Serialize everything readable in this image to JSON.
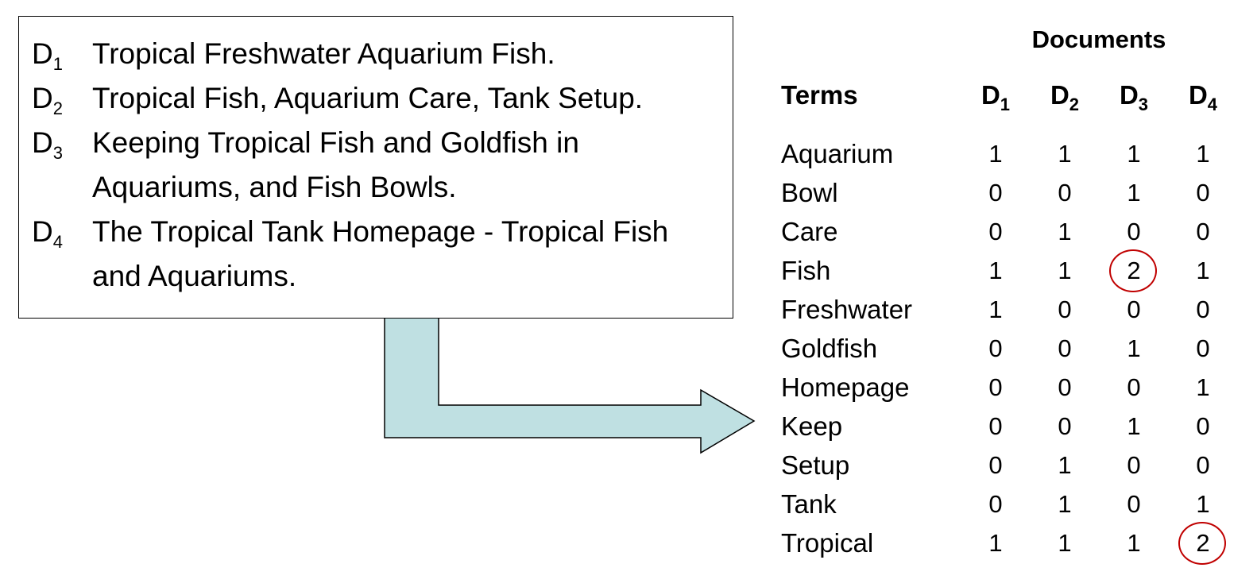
{
  "documents": [
    {
      "id": "D",
      "sub": "1",
      "lines": [
        "Tropical Freshwater Aquarium Fish."
      ]
    },
    {
      "id": "D",
      "sub": "2",
      "lines": [
        "Tropical Fish, Aquarium Care, Tank Setup."
      ]
    },
    {
      "id": "D",
      "sub": "3",
      "lines": [
        "Keeping Tropical Fish and Goldfish in",
        "Aquariums, and Fish Bowls."
      ]
    },
    {
      "id": "D",
      "sub": "4",
      "lines": [
        "The Tropical Tank Homepage - Tropical Fish",
        "and Aquariums."
      ]
    }
  ],
  "matrix": {
    "title": "Documents",
    "terms_header": "Terms",
    "columns": [
      {
        "id": "D",
        "sub": "1"
      },
      {
        "id": "D",
        "sub": "2"
      },
      {
        "id": "D",
        "sub": "3"
      },
      {
        "id": "D",
        "sub": "4"
      }
    ],
    "rows": [
      {
        "term": "Aquarium",
        "values": [
          "1",
          "1",
          "1",
          "1"
        ]
      },
      {
        "term": "Bowl",
        "values": [
          "0",
          "0",
          "1",
          "0"
        ]
      },
      {
        "term": "Care",
        "values": [
          "0",
          "1",
          "0",
          "0"
        ]
      },
      {
        "term": "Fish",
        "values": [
          "1",
          "1",
          "2",
          "1"
        ]
      },
      {
        "term": "Freshwater",
        "values": [
          "1",
          "0",
          "0",
          "0"
        ]
      },
      {
        "term": "Goldfish",
        "values": [
          "0",
          "0",
          "1",
          "0"
        ]
      },
      {
        "term": "Homepage",
        "values": [
          "0",
          "0",
          "0",
          "1"
        ]
      },
      {
        "term": "Keep",
        "values": [
          "0",
          "0",
          "1",
          "0"
        ]
      },
      {
        "term": "Setup",
        "values": [
          "0",
          "1",
          "0",
          "0"
        ]
      },
      {
        "term": "Tank",
        "values": [
          "0",
          "1",
          "0",
          "1"
        ]
      },
      {
        "term": "Tropical",
        "values": [
          "1",
          "1",
          "1",
          "2"
        ]
      }
    ],
    "highlighted": [
      {
        "row": 3,
        "col": 2
      },
      {
        "row": 10,
        "col": 3
      }
    ]
  },
  "colors": {
    "arrow_fill": "#bfe0e2",
    "arrow_stroke": "#000000",
    "highlight": "#c00000"
  }
}
